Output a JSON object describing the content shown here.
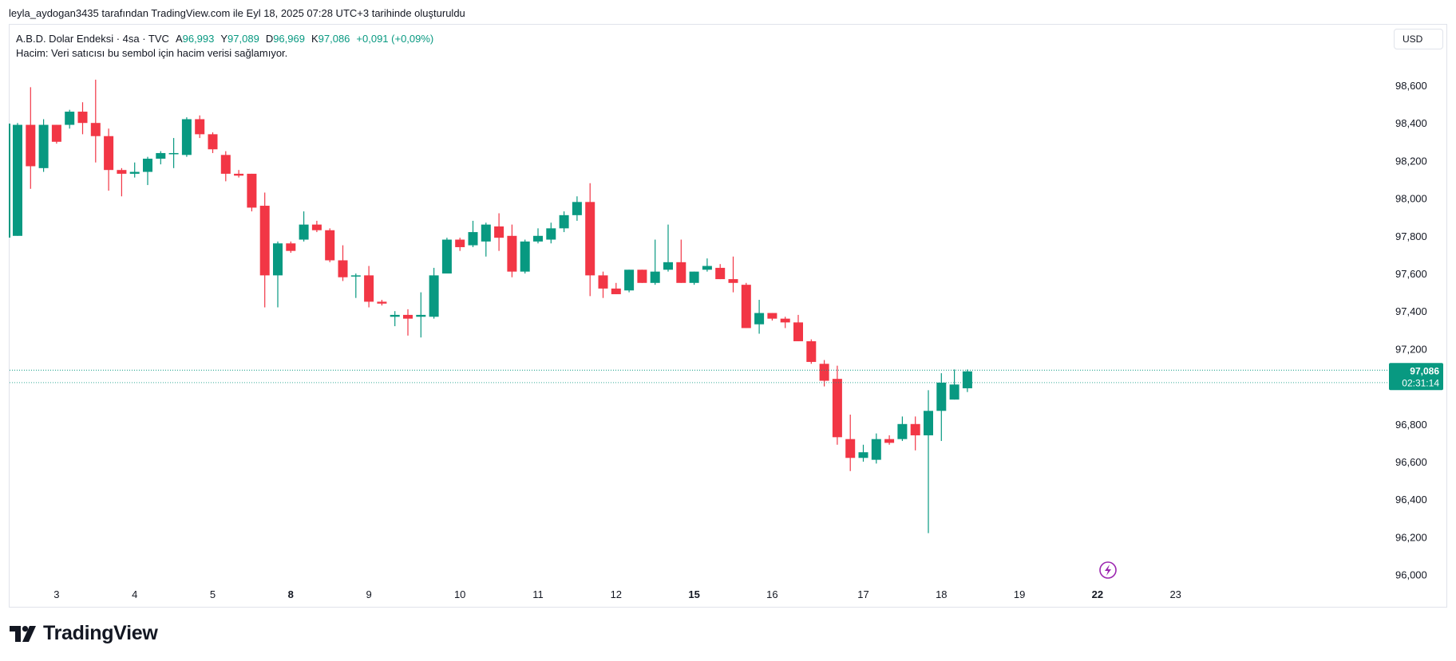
{
  "attribution": "leyla_aydogan3435 tarafından TradingView.com ile Eyl 18, 2025 07:28 UTC+3 tarihinde oluşturuldu",
  "legend": {
    "symbol": "A.B.D. Dolar Endeksi · 4sa · TVC",
    "open_label": "A",
    "open_value": "96,993",
    "high_label": "Y",
    "high_value": "97,089",
    "low_label": "D",
    "low_value": "96,969",
    "close_label": "K",
    "close_value": "97,086",
    "change": "+0,091 (+0,09%)",
    "volume_note": "Hacim: Veri satıcısı bu sembol için hacim verisi sağlamıyor."
  },
  "currency": "USD",
  "price_label": {
    "price": "97,086",
    "countdown": "02:31:14"
  },
  "brand": "TradingView",
  "colors": {
    "up": "#089981",
    "down": "#F23645",
    "grid_text": "#131722",
    "accent_icon": "#9C27B0"
  },
  "chart_data": {
    "type": "candlestick",
    "ylim": [
      96.0,
      98.8
    ],
    "y_ticks": [
      {
        "value": 98.6,
        "label": "98,600"
      },
      {
        "value": 98.4,
        "label": "98,400"
      },
      {
        "value": 98.2,
        "label": "98,200"
      },
      {
        "value": 98.0,
        "label": "98,000"
      },
      {
        "value": 97.8,
        "label": "97,800"
      },
      {
        "value": 97.6,
        "label": "97,600"
      },
      {
        "value": 97.4,
        "label": "97,400"
      },
      {
        "value": 97.2,
        "label": "97,200"
      },
      {
        "value": 96.8,
        "label": "96,800"
      },
      {
        "value": 96.6,
        "label": "96,600"
      },
      {
        "value": 96.4,
        "label": "96,400"
      },
      {
        "value": 96.2,
        "label": "96,200"
      },
      {
        "value": 96.0,
        "label": "96,000"
      }
    ],
    "x_ticks": [
      {
        "index": 3.0,
        "label": "3",
        "bold": false
      },
      {
        "index": 9.0,
        "label": "4",
        "bold": false
      },
      {
        "index": 15.0,
        "label": "5",
        "bold": false
      },
      {
        "index": 21.0,
        "label": "8",
        "bold": true
      },
      {
        "index": 27.0,
        "label": "9",
        "bold": false
      },
      {
        "index": 34.0,
        "label": "10",
        "bold": false
      },
      {
        "index": 40.0,
        "label": "11",
        "bold": false
      },
      {
        "index": 46.0,
        "label": "12",
        "bold": false
      },
      {
        "index": 52.0,
        "label": "15",
        "bold": true
      },
      {
        "index": 58.0,
        "label": "16",
        "bold": false
      },
      {
        "index": 65.0,
        "label": "17",
        "bold": false
      },
      {
        "index": 71.0,
        "label": "18",
        "bold": false
      },
      {
        "index": 77.0,
        "label": "19",
        "bold": false
      },
      {
        "index": 83.0,
        "label": "22",
        "bold": true
      },
      {
        "index": 89.0,
        "label": "23",
        "bold": false
      }
    ],
    "candles": [
      {
        "o": 97.8,
        "h": 98.4,
        "l": 97.8,
        "c": 98.39
      },
      {
        "o": 98.39,
        "h": 98.59,
        "l": 98.05,
        "c": 98.17
      },
      {
        "o": 98.16,
        "h": 98.42,
        "l": 98.14,
        "c": 98.39
      },
      {
        "o": 98.39,
        "h": 98.39,
        "l": 98.29,
        "c": 98.3
      },
      {
        "o": 98.39,
        "h": 98.47,
        "l": 98.37,
        "c": 98.46
      },
      {
        "o": 98.46,
        "h": 98.51,
        "l": 98.34,
        "c": 98.4
      },
      {
        "o": 98.4,
        "h": 98.63,
        "l": 98.19,
        "c": 98.33
      },
      {
        "o": 98.33,
        "h": 98.37,
        "l": 98.04,
        "c": 98.15
      },
      {
        "o": 98.15,
        "h": 98.16,
        "l": 98.01,
        "c": 98.13
      },
      {
        "o": 98.13,
        "h": 98.19,
        "l": 98.11,
        "c": 98.14
      },
      {
        "o": 98.14,
        "h": 98.22,
        "l": 98.07,
        "c": 98.21
      },
      {
        "o": 98.21,
        "h": 98.25,
        "l": 98.18,
        "c": 98.24
      },
      {
        "o": 98.24,
        "h": 98.32,
        "l": 98.16,
        "c": 98.24
      },
      {
        "o": 98.23,
        "h": 98.43,
        "l": 98.22,
        "c": 98.42
      },
      {
        "o": 98.42,
        "h": 98.44,
        "l": 98.32,
        "c": 98.34
      },
      {
        "o": 98.34,
        "h": 98.35,
        "l": 98.24,
        "c": 98.26
      },
      {
        "o": 98.23,
        "h": 98.25,
        "l": 98.09,
        "c": 98.13
      },
      {
        "o": 98.13,
        "h": 98.15,
        "l": 98.11,
        "c": 98.12
      },
      {
        "o": 98.13,
        "h": 98.13,
        "l": 97.93,
        "c": 97.95
      },
      {
        "o": 97.96,
        "h": 98.03,
        "l": 97.42,
        "c": 97.59
      },
      {
        "o": 97.59,
        "h": 97.77,
        "l": 97.42,
        "c": 97.76
      },
      {
        "o": 97.76,
        "h": 97.77,
        "l": 97.71,
        "c": 97.72
      },
      {
        "o": 97.78,
        "h": 97.93,
        "l": 97.77,
        "c": 97.86
      },
      {
        "o": 97.86,
        "h": 97.88,
        "l": 97.82,
        "c": 97.83
      },
      {
        "o": 97.83,
        "h": 97.84,
        "l": 97.66,
        "c": 97.67
      },
      {
        "o": 97.67,
        "h": 97.75,
        "l": 97.56,
        "c": 97.58
      },
      {
        "o": 97.59,
        "h": 97.6,
        "l": 97.47,
        "c": 97.59
      },
      {
        "o": 97.59,
        "h": 97.64,
        "l": 97.42,
        "c": 97.45
      },
      {
        "o": 97.45,
        "h": 97.46,
        "l": 97.43,
        "c": 97.44
      },
      {
        "o": 97.37,
        "h": 97.4,
        "l": 97.32,
        "c": 97.38
      },
      {
        "o": 97.38,
        "h": 97.41,
        "l": 97.27,
        "c": 97.36
      },
      {
        "o": 97.37,
        "h": 97.5,
        "l": 97.26,
        "c": 97.38
      },
      {
        "o": 97.37,
        "h": 97.63,
        "l": 97.36,
        "c": 97.59
      },
      {
        "o": 97.6,
        "h": 97.79,
        "l": 97.6,
        "c": 97.78
      },
      {
        "o": 97.78,
        "h": 97.79,
        "l": 97.72,
        "c": 97.74
      },
      {
        "o": 97.75,
        "h": 97.88,
        "l": 97.74,
        "c": 97.82
      },
      {
        "o": 97.77,
        "h": 97.87,
        "l": 97.69,
        "c": 97.86
      },
      {
        "o": 97.85,
        "h": 97.92,
        "l": 97.72,
        "c": 97.79
      },
      {
        "o": 97.8,
        "h": 97.86,
        "l": 97.58,
        "c": 97.61
      },
      {
        "o": 97.61,
        "h": 97.78,
        "l": 97.6,
        "c": 97.77
      },
      {
        "o": 97.77,
        "h": 97.84,
        "l": 97.76,
        "c": 97.8
      },
      {
        "o": 97.78,
        "h": 97.87,
        "l": 97.76,
        "c": 97.84
      },
      {
        "o": 97.84,
        "h": 97.93,
        "l": 97.82,
        "c": 97.91
      },
      {
        "o": 97.91,
        "h": 98.01,
        "l": 97.88,
        "c": 97.98
      },
      {
        "o": 97.98,
        "h": 98.08,
        "l": 97.48,
        "c": 97.59
      },
      {
        "o": 97.59,
        "h": 97.61,
        "l": 97.47,
        "c": 97.52
      },
      {
        "o": 97.52,
        "h": 97.55,
        "l": 97.49,
        "c": 97.49
      },
      {
        "o": 97.51,
        "h": 97.62,
        "l": 97.5,
        "c": 97.62
      },
      {
        "o": 97.62,
        "h": 97.62,
        "l": 97.55,
        "c": 97.55
      },
      {
        "o": 97.55,
        "h": 97.78,
        "l": 97.54,
        "c": 97.61
      },
      {
        "o": 97.62,
        "h": 97.86,
        "l": 97.61,
        "c": 97.66
      },
      {
        "o": 97.66,
        "h": 97.78,
        "l": 97.55,
        "c": 97.55
      },
      {
        "o": 97.55,
        "h": 97.61,
        "l": 97.54,
        "c": 97.61
      },
      {
        "o": 97.62,
        "h": 97.68,
        "l": 97.61,
        "c": 97.64
      },
      {
        "o": 97.63,
        "h": 97.65,
        "l": 97.57,
        "c": 97.57
      },
      {
        "o": 97.57,
        "h": 97.69,
        "l": 97.5,
        "c": 97.55
      },
      {
        "o": 97.54,
        "h": 97.55,
        "l": 97.31,
        "c": 97.31
      },
      {
        "o": 97.33,
        "h": 97.46,
        "l": 97.28,
        "c": 97.39
      },
      {
        "o": 97.39,
        "h": 97.39,
        "l": 97.35,
        "c": 97.36
      },
      {
        "o": 97.36,
        "h": 97.37,
        "l": 97.31,
        "c": 97.34
      },
      {
        "o": 97.34,
        "h": 97.38,
        "l": 97.24,
        "c": 97.24
      },
      {
        "o": 97.24,
        "h": 97.25,
        "l": 97.12,
        "c": 97.13
      },
      {
        "o": 97.12,
        "h": 97.14,
        "l": 97.0,
        "c": 97.03
      },
      {
        "o": 97.04,
        "h": 97.11,
        "l": 96.69,
        "c": 96.73
      },
      {
        "o": 96.72,
        "h": 96.85,
        "l": 96.55,
        "c": 96.62
      },
      {
        "o": 96.62,
        "h": 96.69,
        "l": 96.6,
        "c": 96.65
      },
      {
        "o": 96.61,
        "h": 96.75,
        "l": 96.59,
        "c": 96.72
      },
      {
        "o": 96.72,
        "h": 96.74,
        "l": 96.69,
        "c": 96.7
      },
      {
        "o": 96.72,
        "h": 96.84,
        "l": 96.71,
        "c": 96.8
      },
      {
        "o": 96.8,
        "h": 96.84,
        "l": 96.66,
        "c": 96.74
      },
      {
        "o": 96.74,
        "h": 96.98,
        "l": 96.22,
        "c": 96.87
      },
      {
        "o": 96.87,
        "h": 97.07,
        "l": 96.71,
        "c": 97.02
      },
      {
        "o": 96.93,
        "h": 97.09,
        "l": 96.93,
        "c": 97.01
      },
      {
        "o": 96.99,
        "h": 97.09,
        "l": 96.97,
        "c": 97.08
      }
    ],
    "last_price": 97.086,
    "prev_close_line": 97.02
  }
}
